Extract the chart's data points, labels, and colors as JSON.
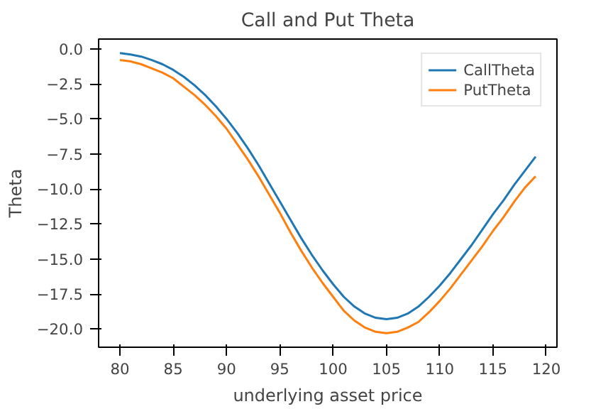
{
  "chart_data": {
    "type": "line",
    "title": "Call and Put Theta",
    "xlabel": "underlying asset price",
    "ylabel": "Theta",
    "x": [
      80,
      81,
      82,
      83,
      84,
      85,
      86,
      87,
      88,
      89,
      90,
      91,
      92,
      93,
      94,
      95,
      96,
      97,
      98,
      99,
      100,
      101,
      102,
      103,
      104,
      105,
      106,
      107,
      108,
      109,
      110,
      111,
      112,
      113,
      114,
      115,
      116,
      117,
      118,
      119
    ],
    "series": [
      {
        "name": "CallTheta",
        "color": "#1f77b4",
        "values": [
          -0.3,
          -0.4,
          -0.55,
          -0.8,
          -1.1,
          -1.5,
          -2.0,
          -2.6,
          -3.3,
          -4.1,
          -5.0,
          -6.0,
          -7.1,
          -8.3,
          -9.6,
          -10.9,
          -12.2,
          -13.5,
          -14.7,
          -15.8,
          -16.8,
          -17.7,
          -18.4,
          -18.9,
          -19.2,
          -19.3,
          -19.2,
          -18.9,
          -18.4,
          -17.7,
          -16.9,
          -16.0,
          -15.0,
          -14.0,
          -12.9,
          -11.8,
          -10.8,
          -9.7,
          -8.7,
          -7.7
        ]
      },
      {
        "name": "PutTheta",
        "color": "#ff7f0e",
        "values": [
          -0.8,
          -0.9,
          -1.1,
          -1.4,
          -1.7,
          -2.1,
          -2.7,
          -3.3,
          -4.0,
          -4.8,
          -5.7,
          -6.8,
          -7.9,
          -9.1,
          -10.4,
          -11.7,
          -13.1,
          -14.4,
          -15.6,
          -16.7,
          -17.7,
          -18.7,
          -19.4,
          -19.9,
          -20.2,
          -20.3,
          -20.2,
          -19.9,
          -19.5,
          -18.8,
          -18.0,
          -17.1,
          -16.1,
          -15.1,
          -14.1,
          -13.0,
          -12.0,
          -10.9,
          -9.9,
          -9.1
        ]
      }
    ],
    "xlim": [
      78,
      121
    ],
    "ylim": [
      -21.3,
      0.7
    ],
    "xticks": [
      80,
      85,
      90,
      95,
      100,
      105,
      110,
      115,
      120
    ],
    "yticks": [
      {
        "value": 0,
        "label": "0.0"
      },
      {
        "value": -2.5,
        "label": "−2.5"
      },
      {
        "value": -5,
        "label": "−5.0"
      },
      {
        "value": -7.5,
        "label": "−7.5"
      },
      {
        "value": -10,
        "label": "−10.0"
      },
      {
        "value": -12.5,
        "label": "−12.5"
      },
      {
        "value": -15,
        "label": "−15.0"
      },
      {
        "value": -17.5,
        "label": "−17.5"
      },
      {
        "value": -20,
        "label": "−20.0"
      }
    ],
    "legend": "top right",
    "grid": false,
    "marker": "none",
    "line_style": "solid"
  }
}
